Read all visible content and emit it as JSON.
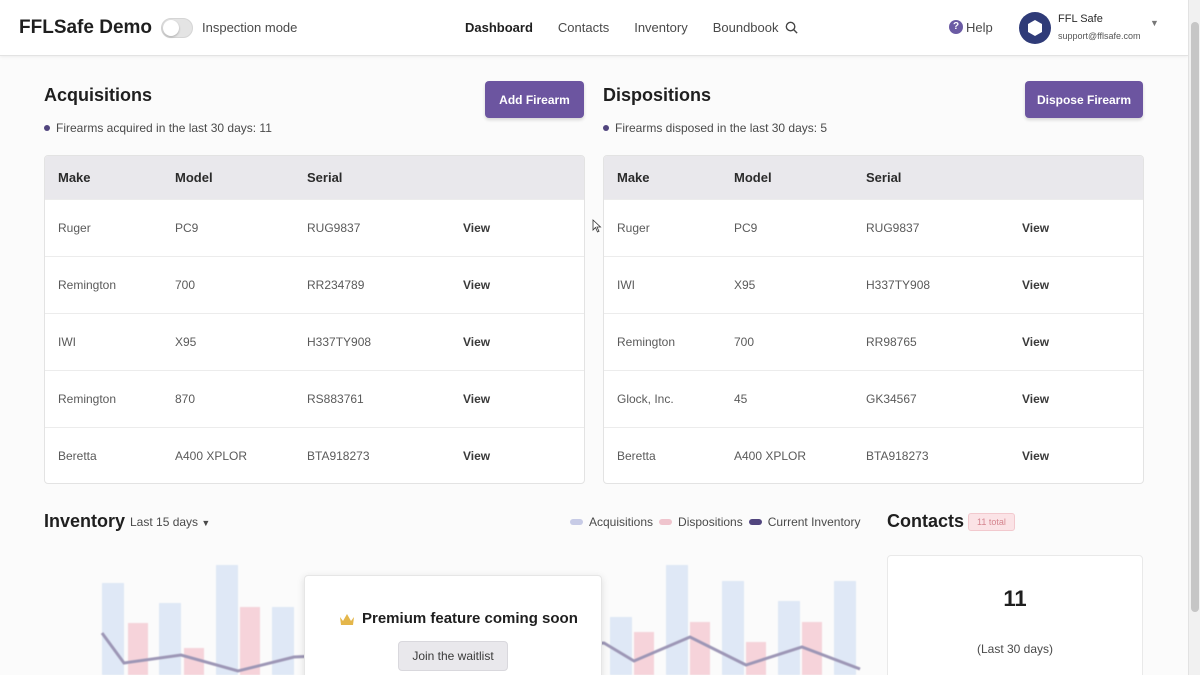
{
  "header": {
    "brand": "FFLSafe Demo",
    "inspection_label": "Inspection mode",
    "nav": [
      "Dashboard",
      "Contacts",
      "Inventory",
      "Boundbook"
    ],
    "help_label": "Help",
    "user_name": "FFL Safe",
    "user_email": "support@fflsafe.com"
  },
  "acquisitions": {
    "title": "Acquisitions",
    "button": "Add Firearm",
    "subtitle": "Firearms acquired in the last 30 days: 11",
    "columns": [
      "Make",
      "Model",
      "Serial"
    ],
    "rows": [
      {
        "make": "Ruger",
        "model": "PC9",
        "serial": "RUG9837",
        "action": "View"
      },
      {
        "make": "Remington",
        "model": "700",
        "serial": "RR234789",
        "action": "View"
      },
      {
        "make": "IWI",
        "model": "X95",
        "serial": "H337TY908",
        "action": "View"
      },
      {
        "make": "Remington",
        "model": "870",
        "serial": "RS883761",
        "action": "View"
      },
      {
        "make": "Beretta",
        "model": "A400 XPLOR",
        "serial": "BTA918273",
        "action": "View"
      }
    ]
  },
  "dispositions": {
    "title": "Dispositions",
    "button": "Dispose Firearm",
    "subtitle": "Firearms disposed in the last 30 days: 5",
    "columns": [
      "Make",
      "Model",
      "Serial"
    ],
    "rows": [
      {
        "make": "Ruger",
        "model": "PC9",
        "serial": "RUG9837",
        "action": "View"
      },
      {
        "make": "IWI",
        "model": "X95",
        "serial": "H337TY908",
        "action": "View"
      },
      {
        "make": "Remington",
        "model": "700",
        "serial": "RR98765",
        "action": "View"
      },
      {
        "make": "Glock, Inc.",
        "model": "45",
        "serial": "GK34567",
        "action": "View"
      },
      {
        "make": "Beretta",
        "model": "A400 XPLOR",
        "serial": "BTA918273",
        "action": "View"
      }
    ]
  },
  "inventory": {
    "title": "Inventory",
    "range": "Last 15 days",
    "legend": [
      "Acquisitions",
      "Dispositions",
      "Current Inventory"
    ],
    "premium_text": "Premium feature coming soon",
    "waitlist_button": "Join the waitlist"
  },
  "contacts": {
    "title": "Contacts",
    "badge": "11 total",
    "count": "11",
    "period": "(Last 30 days)"
  },
  "colors": {
    "primary": "#6c55a0",
    "acquisitions": "#c7cbe6",
    "dispositions": "#efc4cd",
    "current_inventory": "#51457e"
  }
}
